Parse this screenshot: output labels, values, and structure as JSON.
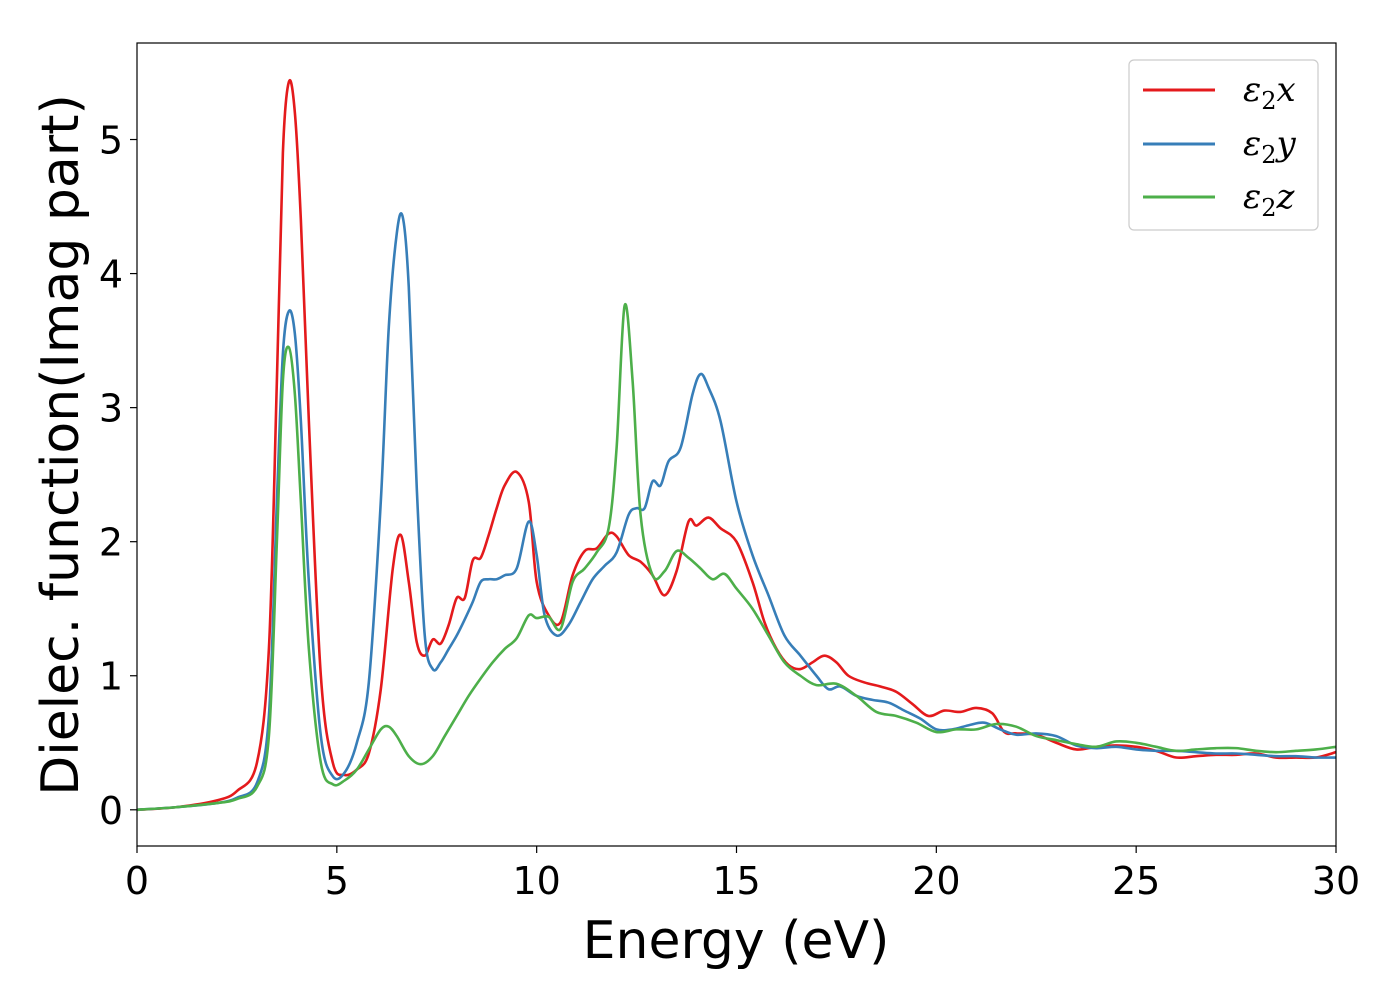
{
  "chart_data": {
    "type": "line",
    "xlabel": "Energy (eV)",
    "ylabel": "Dielec. function(Imag part)",
    "xlim": [
      0,
      30
    ],
    "ylim": [
      -0.27,
      5.72
    ],
    "xticks": [
      0,
      5,
      10,
      15,
      20,
      25,
      30
    ],
    "yticks": [
      0,
      1,
      2,
      3,
      4,
      5
    ],
    "grid": false,
    "legend_position": "top-right",
    "series": [
      {
        "name": "ε₂x",
        "legend_main": "ε",
        "legend_sub": "2",
        "legend_suffix": "x",
        "color": "#e41a1c",
        "x": [
          0,
          1,
          2,
          2.5,
          3,
          3.3,
          3.5,
          3.65,
          3.8,
          3.95,
          4.1,
          4.3,
          4.6,
          4.9,
          5.2,
          5.5,
          5.8,
          6.1,
          6.4,
          6.6,
          6.8,
          7.0,
          7.2,
          7.4,
          7.6,
          7.8,
          8.0,
          8.2,
          8.4,
          8.6,
          8.8,
          9.0,
          9.2,
          9.5,
          9.8,
          10.0,
          10.3,
          10.6,
          10.9,
          11.2,
          11.5,
          11.8,
          12.0,
          12.3,
          12.6,
          12.9,
          13.2,
          13.5,
          13.8,
          14.0,
          14.3,
          14.6,
          15.0,
          15.4,
          15.7,
          16.0,
          16.3,
          16.6,
          16.9,
          17.2,
          17.5,
          17.8,
          18.2,
          18.6,
          19.0,
          19.4,
          19.8,
          20.2,
          20.6,
          21.0,
          21.4,
          21.7,
          22.0,
          22.5,
          23.0,
          23.5,
          24.0,
          24.5,
          25.0,
          25.5,
          26.0,
          26.5,
          27.0,
          27.5,
          28.0,
          28.5,
          29.0,
          29.5,
          30.0
        ],
        "y": [
          0,
          0.02,
          0.07,
          0.14,
          0.35,
          1.2,
          3.2,
          4.9,
          5.43,
          5.2,
          4.4,
          2.9,
          1.0,
          0.35,
          0.26,
          0.3,
          0.42,
          0.9,
          1.8,
          2.05,
          1.7,
          1.25,
          1.15,
          1.27,
          1.24,
          1.38,
          1.58,
          1.58,
          1.86,
          1.88,
          2.05,
          2.25,
          2.42,
          2.52,
          2.3,
          1.7,
          1.45,
          1.4,
          1.75,
          1.93,
          1.95,
          2.06,
          2.04,
          1.9,
          1.85,
          1.75,
          1.6,
          1.78,
          2.15,
          2.12,
          2.18,
          2.1,
          2.0,
          1.7,
          1.4,
          1.2,
          1.08,
          1.05,
          1.1,
          1.15,
          1.1,
          1.0,
          0.95,
          0.92,
          0.88,
          0.79,
          0.7,
          0.74,
          0.73,
          0.76,
          0.72,
          0.58,
          0.57,
          0.56,
          0.5,
          0.45,
          0.47,
          0.48,
          0.47,
          0.44,
          0.39,
          0.4,
          0.41,
          0.41,
          0.42,
          0.39,
          0.39,
          0.39,
          0.43
        ]
      },
      {
        "name": "ε₂y",
        "legend_main": "ε",
        "legend_sub": "2",
        "legend_suffix": "y",
        "color": "#377eb8",
        "x": [
          0,
          1,
          2,
          2.5,
          3,
          3.3,
          3.5,
          3.65,
          3.8,
          3.95,
          4.1,
          4.3,
          4.6,
          4.9,
          5.2,
          5.5,
          5.8,
          6.1,
          6.3,
          6.5,
          6.65,
          6.8,
          7.0,
          7.2,
          7.4,
          7.6,
          7.8,
          8.0,
          8.2,
          8.4,
          8.6,
          8.8,
          9.0,
          9.2,
          9.5,
          9.8,
          10.0,
          10.2,
          10.5,
          10.8,
          11.1,
          11.4,
          11.7,
          12.0,
          12.3,
          12.5,
          12.7,
          12.9,
          13.1,
          13.3,
          13.6,
          13.9,
          14.1,
          14.3,
          14.6,
          15.0,
          15.4,
          15.8,
          16.2,
          16.6,
          17.0,
          17.3,
          17.6,
          18.0,
          18.4,
          18.8,
          19.2,
          19.6,
          20.0,
          20.4,
          20.8,
          21.2,
          21.6,
          22.0,
          22.5,
          23.0,
          23.5,
          24.0,
          24.5,
          25.0,
          25.5,
          26.0,
          26.5,
          27.0,
          27.5,
          28.0,
          28.5,
          29.0,
          29.5,
          30.0
        ],
        "y": [
          0,
          0.02,
          0.05,
          0.09,
          0.2,
          0.7,
          2.3,
          3.4,
          3.72,
          3.55,
          2.9,
          1.7,
          0.55,
          0.25,
          0.28,
          0.5,
          0.95,
          2.3,
          3.6,
          4.3,
          4.42,
          3.9,
          2.4,
          1.3,
          1.05,
          1.1,
          1.2,
          1.3,
          1.42,
          1.55,
          1.7,
          1.72,
          1.72,
          1.75,
          1.8,
          2.15,
          1.9,
          1.45,
          1.3,
          1.38,
          1.55,
          1.72,
          1.82,
          1.92,
          2.2,
          2.25,
          2.25,
          2.45,
          2.42,
          2.6,
          2.7,
          3.1,
          3.25,
          3.15,
          2.9,
          2.3,
          1.9,
          1.6,
          1.3,
          1.15,
          1.0,
          0.9,
          0.92,
          0.85,
          0.82,
          0.8,
          0.74,
          0.68,
          0.6,
          0.6,
          0.63,
          0.65,
          0.6,
          0.56,
          0.57,
          0.55,
          0.48,
          0.46,
          0.47,
          0.45,
          0.44,
          0.44,
          0.43,
          0.42,
          0.42,
          0.41,
          0.4,
          0.4,
          0.39,
          0.39
        ]
      },
      {
        "name": "ε₂z",
        "legend_main": "ε",
        "legend_sub": "2",
        "legend_suffix": "z",
        "color": "#4daf4a",
        "x": [
          0,
          1,
          2,
          2.5,
          3,
          3.3,
          3.5,
          3.65,
          3.8,
          3.95,
          4.1,
          4.3,
          4.6,
          4.9,
          5.2,
          5.5,
          5.8,
          6.1,
          6.3,
          6.5,
          6.8,
          7.1,
          7.4,
          7.7,
          8.0,
          8.3,
          8.6,
          8.9,
          9.2,
          9.5,
          9.8,
          10.0,
          10.3,
          10.6,
          10.9,
          11.2,
          11.5,
          11.8,
          12.0,
          12.2,
          12.4,
          12.6,
          12.9,
          13.2,
          13.5,
          13.8,
          14.1,
          14.4,
          14.7,
          15.0,
          15.4,
          15.8,
          16.2,
          16.6,
          17.0,
          17.5,
          18.0,
          18.5,
          19.0,
          19.5,
          20.0,
          20.5,
          21.0,
          21.5,
          22.0,
          22.5,
          23.0,
          23.5,
          24.0,
          24.5,
          25.0,
          25.5,
          26.0,
          26.5,
          27.0,
          27.5,
          28.0,
          28.5,
          29.0,
          29.5,
          30.0
        ],
        "y": [
          0,
          0.02,
          0.05,
          0.08,
          0.17,
          0.55,
          2.0,
          3.2,
          3.45,
          3.1,
          2.3,
          1.2,
          0.35,
          0.19,
          0.22,
          0.3,
          0.45,
          0.6,
          0.62,
          0.55,
          0.4,
          0.34,
          0.4,
          0.55,
          0.7,
          0.85,
          0.98,
          1.1,
          1.2,
          1.28,
          1.45,
          1.43,
          1.44,
          1.35,
          1.7,
          1.8,
          1.92,
          2.1,
          2.7,
          3.76,
          3.2,
          2.2,
          1.75,
          1.78,
          1.93,
          1.88,
          1.8,
          1.72,
          1.76,
          1.65,
          1.5,
          1.3,
          1.1,
          1.0,
          0.93,
          0.94,
          0.85,
          0.73,
          0.7,
          0.65,
          0.58,
          0.6,
          0.6,
          0.64,
          0.62,
          0.55,
          0.52,
          0.49,
          0.47,
          0.51,
          0.5,
          0.47,
          0.44,
          0.45,
          0.46,
          0.46,
          0.44,
          0.43,
          0.44,
          0.45,
          0.47
        ]
      }
    ]
  }
}
